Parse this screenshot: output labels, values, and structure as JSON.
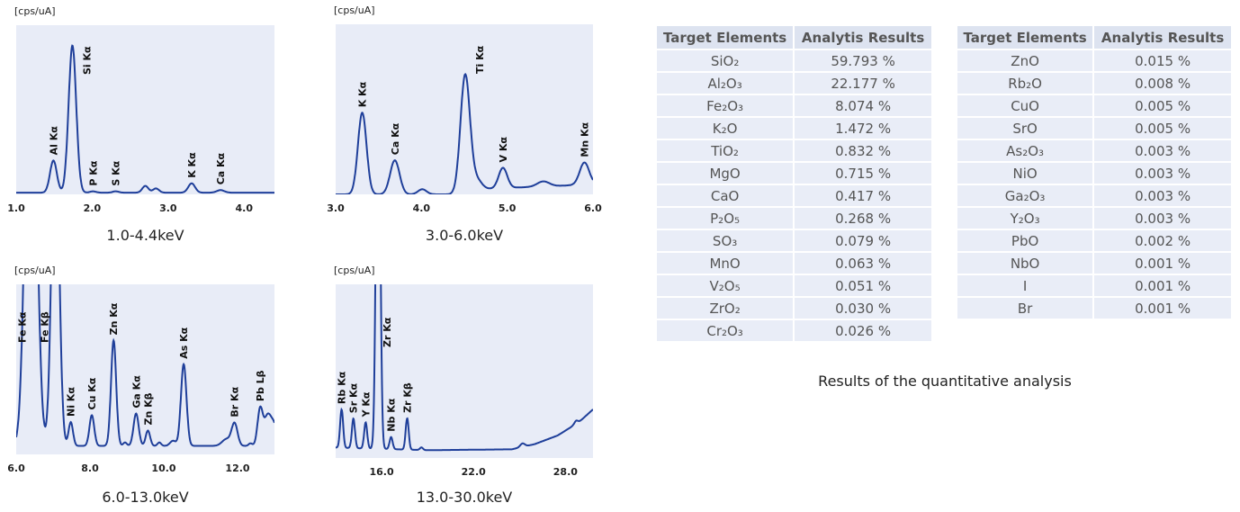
{
  "chart_data": [
    {
      "type": "line",
      "title": "1.0-4.4keV",
      "ylabel": "[cps/uA]",
      "xlim": [
        1.0,
        4.4
      ],
      "ylim": [
        0,
        1
      ],
      "xticks": [
        "1.0",
        "2.0",
        "3.0",
        "4.0"
      ],
      "xtick_values": [
        1.0,
        2.0,
        3.0,
        4.0
      ],
      "background": [
        [
          1.0,
          0.01
        ],
        [
          4.4,
          0.01
        ]
      ],
      "peaks": [
        {
          "label": "Al Kα",
          "energy": 1.49,
          "height": 0.19,
          "width": 0.045
        },
        {
          "label": "Si Kα",
          "energy": 1.74,
          "height": 0.87,
          "width": 0.05
        },
        {
          "label": "P Kα",
          "energy": 2.01,
          "height": 0.008,
          "width": 0.04
        },
        {
          "label": "S Kα",
          "energy": 2.31,
          "height": 0.008,
          "width": 0.04
        },
        {
          "label": "",
          "energy": 2.7,
          "height": 0.04,
          "width": 0.04
        },
        {
          "label": "",
          "energy": 2.84,
          "height": 0.025,
          "width": 0.04
        },
        {
          "label": "K Kα",
          "energy": 3.31,
          "height": 0.055,
          "width": 0.045
        },
        {
          "label": "Ca Kα",
          "energy": 3.69,
          "height": 0.015,
          "width": 0.05
        }
      ]
    },
    {
      "type": "line",
      "title": "3.0-6.0keV",
      "ylabel": "[cps/uA]",
      "xlim": [
        3.0,
        6.0
      ],
      "ylim": [
        0,
        1
      ],
      "xticks": [
        "3.0",
        "4.0",
        "5.0",
        "6.0"
      ],
      "xtick_values": [
        3.0,
        4.0,
        5.0,
        6.0
      ],
      "background": [
        [
          3.0,
          0.0
        ],
        [
          4.4,
          0.0
        ],
        [
          4.7,
          0.03
        ],
        [
          5.1,
          0.04
        ],
        [
          5.6,
          0.05
        ],
        [
          6.0,
          0.06
        ]
      ],
      "peaks": [
        {
          "label": "K Kα",
          "energy": 3.31,
          "height": 0.48,
          "width": 0.05
        },
        {
          "label": "Ca Kα",
          "energy": 3.69,
          "height": 0.2,
          "width": 0.055
        },
        {
          "label": "",
          "energy": 4.01,
          "height": 0.03,
          "width": 0.05
        },
        {
          "label": "Ti Kα",
          "energy": 4.51,
          "height": 0.69,
          "width": 0.055
        },
        {
          "label": "",
          "energy": 4.64,
          "height": 0.06,
          "width": 0.06
        },
        {
          "label": "V Kα",
          "energy": 4.95,
          "height": 0.12,
          "width": 0.05
        },
        {
          "label": "",
          "energy": 5.42,
          "height": 0.03,
          "width": 0.07
        },
        {
          "label": "Mn Kα",
          "energy": 5.9,
          "height": 0.13,
          "width": 0.055
        }
      ]
    },
    {
      "type": "line",
      "title": "6.0-13.0keV",
      "ylabel": "[cps/uA]",
      "xlim": [
        6.0,
        13.0
      ],
      "ylim": [
        0,
        1
      ],
      "xticks": [
        "6.0",
        "8.0",
        "10.0",
        "12.0"
      ],
      "xtick_values": [
        6.0,
        8.0,
        10.0,
        12.0
      ],
      "background": [
        [
          6.0,
          0.05
        ],
        [
          13.0,
          0.05
        ]
      ],
      "peaks": [
        {
          "label": "Fe Kα",
          "energy": 6.4,
          "height": 3.0,
          "width": 0.14
        },
        {
          "label": "Fe Kβ",
          "energy": 7.06,
          "height": 2.0,
          "width": 0.1
        },
        {
          "label": "Ni Kα",
          "energy": 7.48,
          "height": 0.14,
          "width": 0.06
        },
        {
          "label": "Cu Kα",
          "energy": 8.05,
          "height": 0.18,
          "width": 0.065
        },
        {
          "label": "Zn Kα",
          "energy": 8.64,
          "height": 0.62,
          "width": 0.07
        },
        {
          "label": "",
          "energy": 8.95,
          "height": 0.02,
          "width": 0.05
        },
        {
          "label": "Ga Kα",
          "energy": 9.25,
          "height": 0.19,
          "width": 0.07
        },
        {
          "label": "Zn Kβ",
          "energy": 9.57,
          "height": 0.09,
          "width": 0.06
        },
        {
          "label": "",
          "energy": 9.88,
          "height": 0.02,
          "width": 0.05
        },
        {
          "label": "",
          "energy": 10.25,
          "height": 0.03,
          "width": 0.08
        },
        {
          "label": "As Kα",
          "energy": 10.54,
          "height": 0.48,
          "width": 0.075
        },
        {
          "label": "",
          "energy": 11.7,
          "height": 0.04,
          "width": 0.12
        },
        {
          "label": "Br Kα",
          "energy": 11.92,
          "height": 0.13,
          "width": 0.08
        },
        {
          "label": "",
          "energy": 12.35,
          "height": 0.015,
          "width": 0.05
        },
        {
          "label": "Pb Lβ",
          "energy": 12.61,
          "height": 0.21,
          "width": 0.07
        },
        {
          "label": "",
          "energy": 12.82,
          "height": 0.18,
          "width": 0.1
        },
        {
          "label": "",
          "energy": 13.0,
          "height": 0.1,
          "width": 0.08
        }
      ]
    },
    {
      "type": "line",
      "title": "13.0-30.0keV",
      "ylabel": "[cps/uA]",
      "xlim": [
        13.0,
        29.8
      ],
      "ylim": [
        0,
        1
      ],
      "xticks": [
        "16.0",
        "22.0",
        "28.0"
      ],
      "xtick_values": [
        16.0,
        22.0,
        28.0
      ],
      "background": [
        [
          13.0,
          0.06
        ],
        [
          19.0,
          0.045
        ],
        [
          24.5,
          0.05
        ],
        [
          26.0,
          0.08
        ],
        [
          27.5,
          0.13
        ],
        [
          28.4,
          0.18
        ],
        [
          28.8,
          0.2
        ],
        [
          29.8,
          0.28
        ]
      ],
      "peaks": [
        {
          "label": "Rb Kα",
          "energy": 13.39,
          "height": 0.22,
          "width": 0.1
        },
        {
          "label": "Sr Kα",
          "energy": 14.16,
          "height": 0.17,
          "width": 0.1
        },
        {
          "label": "Y Kα",
          "energy": 14.96,
          "height": 0.15,
          "width": 0.1
        },
        {
          "label": "Zr Kα",
          "energy": 15.77,
          "height": 2.5,
          "width": 0.13
        },
        {
          "label": "Nb Kα",
          "energy": 16.62,
          "height": 0.07,
          "width": 0.1
        },
        {
          "label": "Zr Kβ",
          "energy": 17.67,
          "height": 0.18,
          "width": 0.1
        },
        {
          "label": "",
          "energy": 18.6,
          "height": 0.015,
          "width": 0.1
        },
        {
          "label": "",
          "energy": 25.2,
          "height": 0.02,
          "width": 0.15
        },
        {
          "label": "",
          "energy": 28.7,
          "height": 0.02,
          "width": 0.12
        }
      ]
    }
  ],
  "tables": [
    {
      "headers": [
        "Target Elements",
        "Analytis Results"
      ],
      "rows": [
        [
          "SiO₂",
          "59.793 %"
        ],
        [
          "Al₂O₃",
          "22.177 %"
        ],
        [
          "Fe₂O₃",
          "8.074 %"
        ],
        [
          "K₂O",
          "1.472 %"
        ],
        [
          "TiO₂",
          "0.832 %"
        ],
        [
          "MgO",
          "0.715 %"
        ],
        [
          "CaO",
          "0.417 %"
        ],
        [
          "P₂O₅",
          "0.268 %"
        ],
        [
          "SO₃",
          "0.079 %"
        ],
        [
          "MnO",
          "0.063 %"
        ],
        [
          "V₂O₅",
          "0.051 %"
        ],
        [
          "ZrO₂",
          "0.030 %"
        ],
        [
          "Cr₂O₃",
          "0.026 %"
        ]
      ]
    },
    {
      "headers": [
        "Target Elements",
        "Analytis Results"
      ],
      "rows": [
        [
          "ZnO",
          "0.015 %"
        ],
        [
          "Rb₂O",
          "0.008 %"
        ],
        [
          "CuO",
          "0.005 %"
        ],
        [
          "SrO",
          "0.005 %"
        ],
        [
          "As₂O₃",
          "0.003 %"
        ],
        [
          "NiO",
          "0.003 %"
        ],
        [
          "Ga₂O₃",
          "0.003 %"
        ],
        [
          "Y₂O₃",
          "0.003 %"
        ],
        [
          "PbO",
          "0.002 %"
        ],
        [
          "NbO",
          "0.001 %"
        ],
        [
          "I",
          "0.001 %"
        ],
        [
          "Br",
          "0.001 %"
        ]
      ]
    }
  ],
  "tables_caption": "Results of the quantitative analysis",
  "colors": {
    "line": "#1f3f9a",
    "plot_bg": "#e8ecf7",
    "header_bg": "#dde3f0",
    "row_bg": "#e9edf7"
  }
}
